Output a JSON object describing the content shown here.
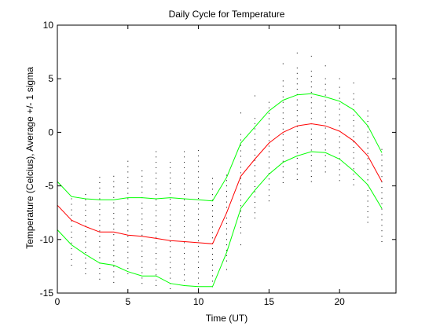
{
  "chart_data": {
    "type": "line",
    "title": "Daily Cycle for Temperature",
    "xlabel": "Time (UT)",
    "ylabel": "Temperature (Celcius), Average +/- 1 sigma",
    "xlim": [
      0,
      24
    ],
    "ylim": [
      -15,
      10
    ],
    "xticks": [
      0,
      5,
      10,
      15,
      20
    ],
    "yticks": [
      -15,
      -10,
      -5,
      0,
      5,
      10
    ],
    "grid": false,
    "x": [
      0,
      1,
      2,
      3,
      4,
      5,
      6,
      7,
      8,
      9,
      10,
      11,
      12,
      13,
      14,
      15,
      16,
      17,
      18,
      19,
      20,
      21,
      22,
      23
    ],
    "series": [
      {
        "role": "average",
        "color": "#ff0000",
        "values": [
          -6.8,
          -8.2,
          -8.8,
          -9.3,
          -9.3,
          -9.6,
          -9.7,
          -9.9,
          -10.1,
          -10.2,
          -10.3,
          -10.4,
          -7.5,
          -4.1,
          -2.5,
          -1.0,
          0.0,
          0.6,
          0.8,
          0.6,
          0.1,
          -0.8,
          -2.2,
          -4.6
        ]
      },
      {
        "role": "average-plus-1-sigma",
        "color": "#00ff00",
        "values": [
          -4.6,
          -6.0,
          -6.2,
          -6.3,
          -6.3,
          -6.1,
          -6.1,
          -6.2,
          -6.1,
          -6.2,
          -6.3,
          -6.4,
          -4.2,
          -1.0,
          0.5,
          2.0,
          3.0,
          3.5,
          3.6,
          3.3,
          2.9,
          2.1,
          0.6,
          -1.9
        ]
      },
      {
        "role": "average-minus-1-sigma",
        "color": "#00ff00",
        "values": [
          -9.1,
          -10.5,
          -11.4,
          -12.2,
          -12.4,
          -13.0,
          -13.4,
          -13.4,
          -14.1,
          -14.3,
          -14.4,
          -14.4,
          -11.2,
          -7.1,
          -5.4,
          -3.9,
          -2.8,
          -2.2,
          -1.8,
          -1.9,
          -2.5,
          -3.6,
          -4.9,
          -7.1
        ]
      }
    ],
    "scatter": {
      "color": "#000000",
      "xs": [
        1,
        2,
        3,
        4,
        5,
        6,
        7,
        8,
        9,
        10,
        11,
        12,
        13,
        14,
        15,
        16,
        17,
        18,
        19,
        20,
        21,
        22,
        23
      ],
      "ranges": [
        [
          -12.4,
          -6.2
        ],
        [
          -13.2,
          -5.8
        ],
        [
          -13.7,
          -4.2
        ],
        [
          -14.0,
          -4.1
        ],
        [
          -13.2,
          -2.7
        ],
        [
          -14.1,
          -3.6
        ],
        [
          -14.3,
          -1.8
        ],
        [
          -14.6,
          -2.8
        ],
        [
          -14.3,
          -1.8
        ],
        [
          -14.6,
          -1.7
        ],
        [
          -14.4,
          -4.3
        ],
        [
          -12.0,
          -4.0
        ],
        [
          -9.4,
          -0.2
        ],
        [
          -8.0,
          1.3
        ],
        [
          -6.4,
          2.8
        ],
        [
          -4.7,
          4.8
        ],
        [
          -4.4,
          6.0
        ],
        [
          -4.6,
          5.7
        ],
        [
          -3.7,
          5.0
        ],
        [
          -4.5,
          4.2
        ],
        [
          -4.9,
          3.6
        ],
        [
          -8.4,
          2.0
        ],
        [
          -10.2,
          -1.6
        ]
      ],
      "outliers": [
        [
          12,
          -12.8
        ],
        [
          13,
          -10.5
        ],
        [
          13,
          1.8
        ],
        [
          14,
          3.4
        ],
        [
          16,
          6.4
        ],
        [
          17,
          7.4
        ],
        [
          18,
          7.1
        ],
        [
          19,
          6.2
        ],
        [
          20,
          5.0
        ],
        [
          21,
          4.6
        ]
      ]
    }
  }
}
